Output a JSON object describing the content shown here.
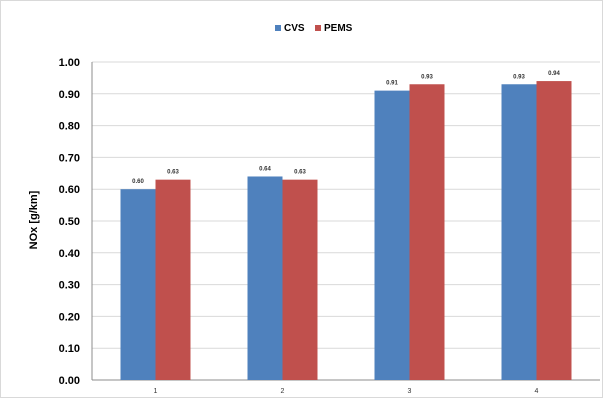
{
  "chart_data": {
    "type": "bar",
    "title": "",
    "xlabel": "",
    "ylabel": "NOx [g/km]",
    "categories": [
      "1",
      "2",
      "3",
      "4"
    ],
    "series": [
      {
        "name": "CVS",
        "color": "#4f81bd",
        "values": [
          0.6,
          0.64,
          0.91,
          0.93
        ],
        "labels": [
          "0.60",
          "0.64",
          "0.91",
          "0.93"
        ]
      },
      {
        "name": "PEMS",
        "color": "#c0504d",
        "values": [
          0.63,
          0.63,
          0.93,
          0.94
        ],
        "labels": [
          "0.63",
          "0.63",
          "0.93",
          "0.94"
        ]
      }
    ],
    "ylim": [
      0,
      1.0
    ],
    "yticks": [
      0.0,
      0.1,
      0.2,
      0.3,
      0.4,
      0.5,
      0.6,
      0.7,
      0.8,
      0.9,
      1.0
    ],
    "ytick_labels": [
      "0.00",
      "0.10",
      "0.20",
      "0.30",
      "0.40",
      "0.50",
      "0.60",
      "0.70",
      "0.80",
      "0.90",
      "1.00"
    ],
    "grid": true,
    "legend": "top-center"
  }
}
